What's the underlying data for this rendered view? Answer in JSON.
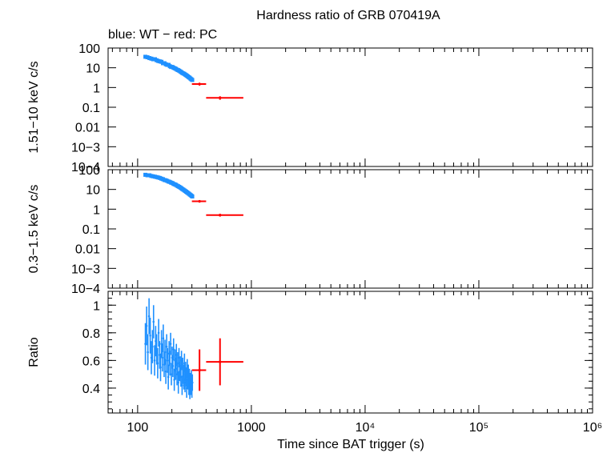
{
  "chart_data": [
    {
      "type": "scatter",
      "panel": "hard-band",
      "title": "Hardness ratio of GRB 070419A",
      "subtitle": "blue: WT − red: PC",
      "ylabel": "1.51−10 keV c/s",
      "yscale": "log",
      "ylim": [
        0.0001,
        100
      ],
      "yticks": [
        "100",
        "10",
        "1",
        "0.1",
        "0.01",
        "10−3",
        "10−4"
      ],
      "series": [
        {
          "mode": "WT",
          "color": "#1e90ff",
          "x": [
            117,
            122,
            127,
            132,
            137,
            142,
            147,
            152,
            157,
            162,
            167,
            172,
            177,
            182,
            187,
            192,
            197,
            202,
            207,
            212,
            217,
            222,
            227,
            232,
            237,
            242,
            247,
            252,
            257,
            262,
            267,
            272,
            277,
            282,
            287,
            292,
            297,
            302
          ],
          "y": [
            36,
            34,
            31,
            29,
            27,
            27,
            24,
            22,
            21,
            20,
            17,
            17,
            15,
            14,
            14,
            12,
            11,
            11,
            10,
            9.4,
            8.8,
            8.0,
            7.6,
            7.1,
            6.5,
            6.0,
            5.5,
            5.2,
            4.9,
            4.5,
            4.2,
            3.9,
            3.6,
            3.3,
            3.1,
            2.8,
            2.6,
            2.4
          ]
        },
        {
          "mode": "PC",
          "color": "#ff0000",
          "x": [
            350,
            530
          ],
          "xerr_low": [
            50,
            130
          ],
          "xerr_high": [
            50,
            320
          ],
          "y": [
            1.5,
            0.3
          ],
          "yerr": [
            0.25,
            0.06
          ]
        }
      ]
    },
    {
      "type": "scatter",
      "panel": "soft-band",
      "ylabel": "0.3−1.5 keV c/s",
      "yscale": "log",
      "ylim": [
        0.0001,
        100
      ],
      "yticks": [
        "100",
        "10",
        "1",
        "0.1",
        "0.01",
        "10−3",
        "10−4"
      ],
      "series": [
        {
          "mode": "WT",
          "color": "#1e90ff",
          "x": [
            117,
            122,
            127,
            132,
            137,
            142,
            147,
            152,
            157,
            162,
            167,
            172,
            177,
            182,
            187,
            192,
            197,
            202,
            207,
            212,
            217,
            222,
            227,
            232,
            237,
            242,
            247,
            252,
            257,
            262,
            267,
            272,
            277,
            282,
            287,
            292,
            297,
            302
          ],
          "y": [
            55,
            52,
            52,
            48,
            46,
            44,
            42,
            40,
            38,
            35,
            33,
            30,
            29,
            27,
            25,
            24,
            22,
            21,
            19,
            18,
            17,
            15.5,
            14.5,
            13.5,
            12.5,
            11.5,
            10.5,
            9.8,
            9.0,
            8.3,
            7.7,
            7.1,
            6.6,
            6.1,
            5.6,
            5.2,
            4.8,
            4.4
          ]
        },
        {
          "mode": "PC",
          "color": "#ff0000",
          "x": [
            350,
            530
          ],
          "xerr_low": [
            50,
            130
          ],
          "xerr_high": [
            50,
            320
          ],
          "y": [
            2.5,
            0.5
          ],
          "yerr": [
            0.35,
            0.08
          ]
        }
      ]
    },
    {
      "type": "scatter",
      "panel": "ratio",
      "ylabel": "Ratio",
      "xlabel": "Time since BAT trigger (s)",
      "xscale": "log",
      "xlim": [
        55,
        1000000
      ],
      "xticks": [
        "100",
        "1000",
        "10⁴",
        "10⁵",
        "10⁶"
      ],
      "ylim": [
        0.22,
        1.1
      ],
      "yticks": [
        "1",
        "0.8",
        "0.6",
        "0.4"
      ],
      "series": [
        {
          "mode": "WT",
          "color": "#1e90ff",
          "x": [
            117,
            120,
            123,
            126,
            129,
            132,
            135,
            138,
            141,
            144,
            147,
            150,
            153,
            156,
            159,
            162,
            165,
            168,
            171,
            174,
            177,
            180,
            183,
            186,
            189,
            192,
            195,
            198,
            201,
            204,
            207,
            210,
            213,
            216,
            219,
            222,
            225,
            228,
            231,
            234,
            237,
            240,
            243,
            246,
            249,
            252,
            255,
            258,
            261,
            264,
            267,
            270,
            273,
            276,
            279,
            282,
            285,
            288,
            291,
            294,
            297,
            300,
            303
          ],
          "y": [
            0.72,
            0.85,
            0.66,
            0.92,
            0.78,
            0.62,
            0.7,
            0.88,
            0.6,
            0.74,
            0.68,
            0.58,
            0.8,
            0.64,
            0.55,
            0.72,
            0.62,
            0.76,
            0.57,
            0.66,
            0.52,
            0.7,
            0.6,
            0.48,
            0.65,
            0.58,
            0.72,
            0.5,
            0.62,
            0.56,
            0.68,
            0.46,
            0.6,
            0.54,
            0.64,
            0.5,
            0.58,
            0.44,
            0.62,
            0.52,
            0.56,
            0.48,
            0.6,
            0.42,
            0.55,
            0.5,
            0.46,
            0.58,
            0.44,
            0.52,
            0.48,
            0.4,
            0.54,
            0.46,
            0.5,
            0.42,
            0.48,
            0.38,
            0.45,
            0.41,
            0.47,
            0.39,
            0.44
          ],
          "yerr": [
            0.15,
            0.14,
            0.13,
            0.13,
            0.13,
            0.12,
            0.12,
            0.12,
            0.11,
            0.11,
            0.11,
            0.11,
            0.1,
            0.1,
            0.1,
            0.1,
            0.1,
            0.1,
            0.09,
            0.09,
            0.09,
            0.09,
            0.09,
            0.09,
            0.09,
            0.09,
            0.08,
            0.08,
            0.08,
            0.08,
            0.08,
            0.08,
            0.08,
            0.08,
            0.08,
            0.08,
            0.08,
            0.08,
            0.07,
            0.07,
            0.07,
            0.07,
            0.07,
            0.07,
            0.07,
            0.07,
            0.07,
            0.07,
            0.07,
            0.07,
            0.07,
            0.07,
            0.07,
            0.07,
            0.07,
            0.07,
            0.06,
            0.06,
            0.06,
            0.06,
            0.06,
            0.06,
            0.06
          ]
        },
        {
          "mode": "PC",
          "color": "#ff0000",
          "x": [
            350,
            530
          ],
          "xerr_low": [
            50,
            130
          ],
          "xerr_high": [
            50,
            320
          ],
          "y": [
            0.53,
            0.59
          ],
          "yerr": [
            0.15,
            0.17
          ]
        }
      ]
    }
  ]
}
